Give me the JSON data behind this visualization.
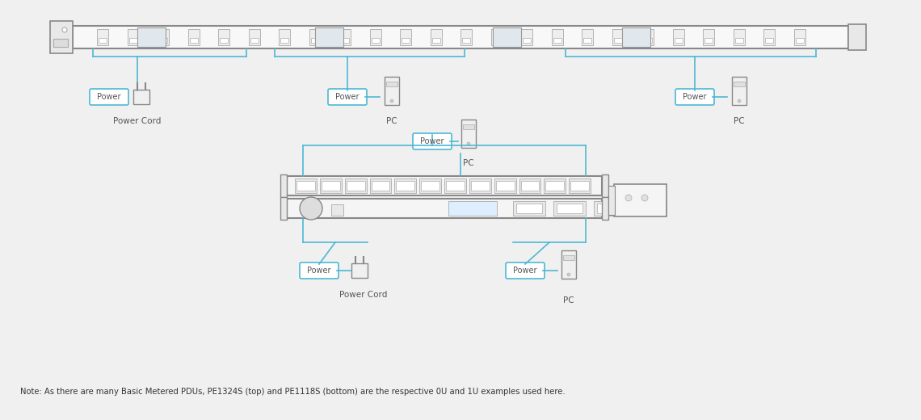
{
  "bg_color": "#f0f0f0",
  "line_color": "#4db8d4",
  "box_color": "#ffffff",
  "box_edge": "#4db8d4",
  "dark_color": "#555555",
  "note_text": "Note: As there are many Basic Metered PDUs, PE1324S (top) and PE1118S (bottom) are the respective 0U and 1U examples used here.",
  "power_label": "Power",
  "power_cord_label": "Power Cord",
  "pc_label": "PC"
}
